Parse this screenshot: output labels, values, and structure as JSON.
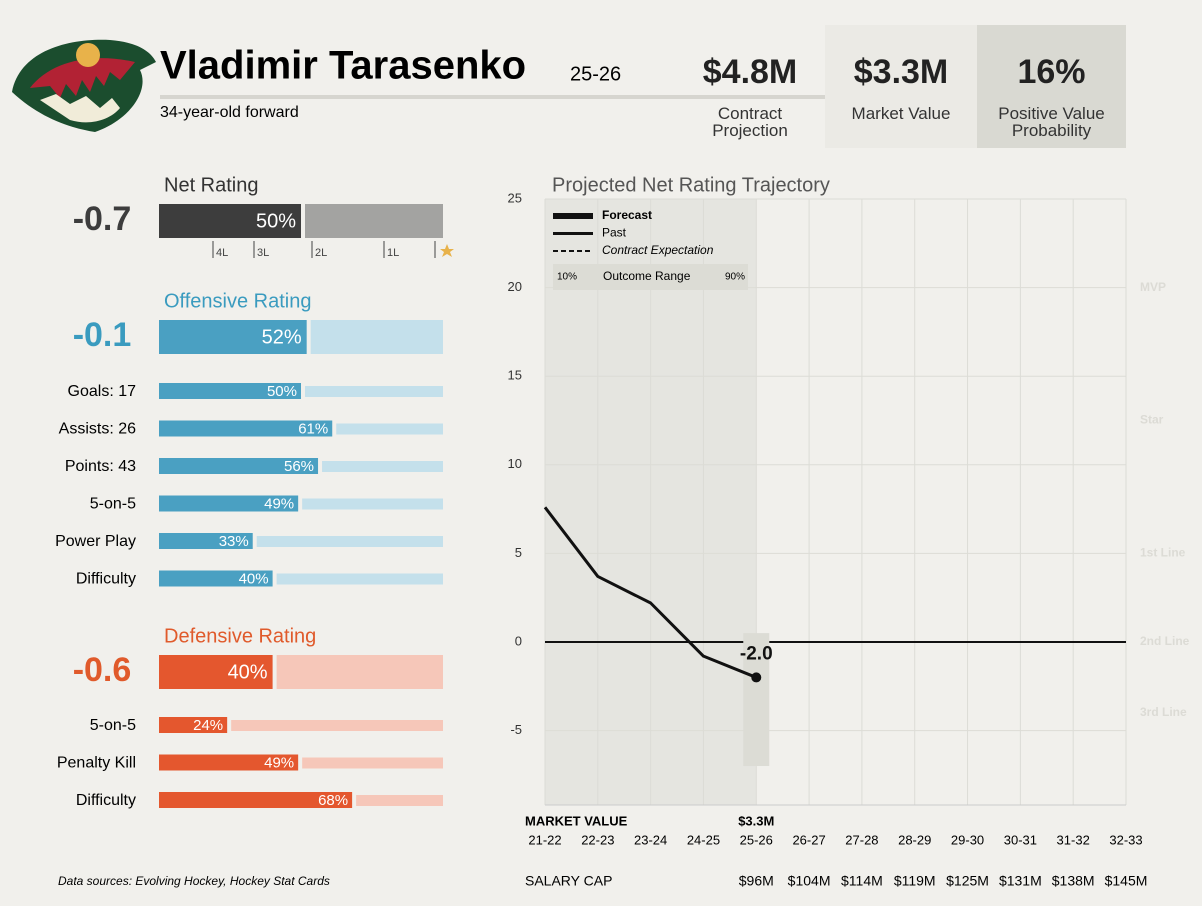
{
  "header": {
    "name": "Vladimir Tarasenko",
    "season": "25-26",
    "subtitle": "34-year-old forward",
    "stats": [
      {
        "value": "$4.8M",
        "label": "Contract Projection"
      },
      {
        "value": "$3.3M",
        "label": "Market Value"
      },
      {
        "value": "16%",
        "label": "Positive Value Probability"
      }
    ]
  },
  "net_rating": {
    "title": "Net Rating",
    "value": -0.7,
    "percent": {
      "value": 50,
      "label": "50%"
    },
    "ticks": [
      "4L",
      "3L",
      "2L",
      "1L"
    ]
  },
  "offensive_rating": {
    "title": "Offensive Rating",
    "value": -0.1,
    "percent": {
      "value": 52,
      "label": "52%"
    },
    "rows": [
      {
        "label": "Goals: 17",
        "percent": {
          "value": 50,
          "label": "50%"
        }
      },
      {
        "label": "Assists: 26",
        "percent": {
          "value": 61,
          "label": "61%"
        }
      },
      {
        "label": "Points: 43",
        "percent": {
          "value": 56,
          "label": "56%"
        }
      },
      {
        "label": "5-on-5",
        "percent": {
          "value": 49,
          "label": "49%"
        }
      },
      {
        "label": "Power Play",
        "percent": {
          "value": 33,
          "label": "33%"
        }
      },
      {
        "label": "Difficulty",
        "percent": {
          "value": 40,
          "label": "40%"
        }
      }
    ]
  },
  "defensive_rating": {
    "title": "Defensive Rating",
    "value": -0.6,
    "percent": {
      "value": 40,
      "label": "40%"
    },
    "rows": [
      {
        "label": "5-on-5",
        "percent": {
          "value": 24,
          "label": "24%"
        }
      },
      {
        "label": "Penalty Kill",
        "percent": {
          "value": 49,
          "label": "49%"
        }
      },
      {
        "label": "Difficulty",
        "percent": {
          "value": 68,
          "label": "68%"
        }
      }
    ]
  },
  "source": "Data sources: Evolving Hockey, Hockey Stat Cards",
  "chart_data": {
    "type": "line",
    "title": "Projected Net Rating Trajectory",
    "categories": [
      "21-22",
      "22-23",
      "23-24",
      "24-25",
      "25-26",
      "26-27",
      "27-28",
      "28-29",
      "29-30",
      "30-31",
      "31-32",
      "32-33"
    ],
    "series": [
      {
        "name": "Forecast",
        "color": "#111111",
        "style": "thick",
        "values": [
          null,
          null,
          null,
          null,
          null,
          null,
          null,
          null,
          null,
          null,
          null,
          null
        ]
      },
      {
        "name": "Past",
        "color": "#111111",
        "style": "solid",
        "values": [
          7.6,
          3.7,
          2.2,
          -0.8,
          -2.0,
          null,
          null,
          null,
          null,
          null,
          null,
          null
        ],
        "value_labels": [
          null,
          null,
          null,
          null,
          "-2.0",
          null,
          null,
          null,
          null,
          null,
          null,
          null
        ]
      },
      {
        "name": "Contract Expectation",
        "color": "#111111",
        "style": "dashed",
        "values": [
          null,
          null,
          null,
          null,
          null,
          null,
          null,
          null,
          null,
          null,
          null,
          null
        ]
      }
    ],
    "outcome_range": {
      "name": "Outcome Range",
      "low_label": "10%",
      "high_label": "90%",
      "low": [
        null,
        null,
        null,
        null,
        -7,
        null,
        null,
        null,
        null,
        null,
        null,
        null
      ],
      "high": [
        null,
        null,
        null,
        null,
        0.5,
        null,
        null,
        null,
        null,
        null,
        null,
        null
      ]
    },
    "tiers": [
      {
        "label": "MVP",
        "value": 20
      },
      {
        "label": "Star",
        "value": 12.5
      },
      {
        "label": "1st Line",
        "value": 5
      },
      {
        "label": "2nd Line",
        "value": 0
      },
      {
        "label": "3rd Line",
        "value": -4
      }
    ],
    "ylim": [
      -9.2,
      25
    ],
    "yticks": [
      -5,
      0,
      5,
      10,
      15,
      20,
      25
    ],
    "grid": true,
    "market_value": {
      "label": "MARKET VALUE",
      "values": [
        null,
        null,
        null,
        null,
        "$3.3M",
        null,
        null,
        null,
        null,
        null,
        null,
        null
      ]
    },
    "salary_cap": {
      "label": "SALARY CAP",
      "values": [
        null,
        null,
        null,
        null,
        "$96M",
        "$104M",
        "$114M",
        "$119M",
        "$125M",
        "$131M",
        "$138M",
        "$145M"
      ]
    }
  }
}
